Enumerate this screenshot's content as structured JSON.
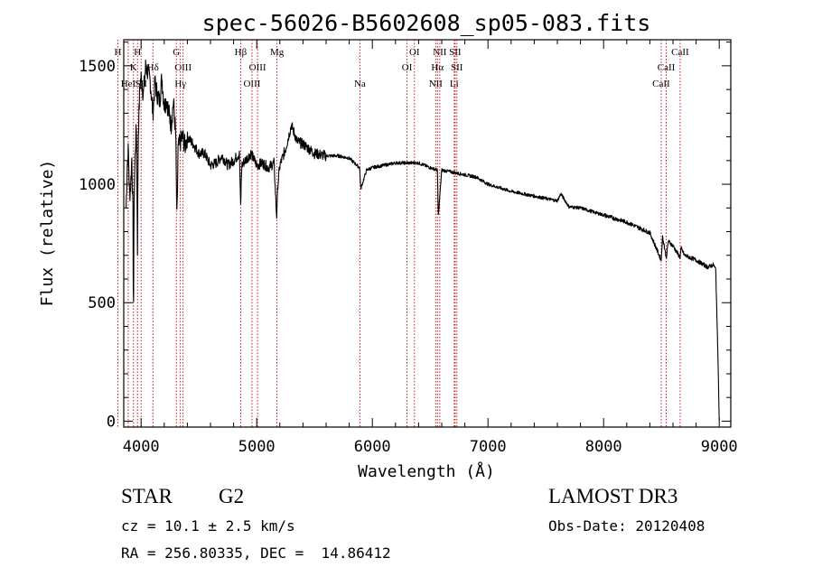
{
  "chart_data": {
    "type": "line",
    "title": "spec-56026-B5602608_sp05-083.fits",
    "xlabel": "Wavelength (Å)",
    "ylabel": "Flux (relative)",
    "xlim": [
      3850,
      9100
    ],
    "ylim": [
      -25,
      1610
    ],
    "xticks": [
      4000,
      5000,
      6000,
      7000,
      8000,
      9000
    ],
    "yticks": [
      0,
      500,
      1000,
      1500
    ],
    "xtick_labels": [
      "4000",
      "5000",
      "6000",
      "7000",
      "8000",
      "9000"
    ],
    "ytick_labels": [
      "0",
      "500",
      "1000",
      "1500"
    ],
    "series": [
      {
        "name": "flux",
        "x": [
          3870,
          3880,
          3890,
          3900,
          3910,
          3920,
          3930,
          3934,
          3940,
          3950,
          3960,
          3969,
          3975,
          3990,
          4000,
          4020,
          4040,
          4060,
          4080,
          4102,
          4120,
          4140,
          4160,
          4180,
          4200,
          4220,
          4240,
          4260,
          4280,
          4300,
          4310,
          4320,
          4340,
          4360,
          4380,
          4400,
          4450,
          4500,
          4550,
          4600,
          4650,
          4700,
          4750,
          4800,
          4850,
          4861,
          4870,
          4900,
          4950,
          5000,
          5050,
          5100,
          5150,
          5172,
          5183,
          5200,
          5250,
          5300,
          5350,
          5400,
          5450,
          5500,
          5600,
          5700,
          5800,
          5890,
          5900,
          5950,
          6000,
          6100,
          6200,
          6300,
          6400,
          6500,
          6563,
          6570,
          6600,
          6700,
          6800,
          6900,
          7000,
          7200,
          7400,
          7600,
          7630,
          7700,
          7800,
          8000,
          8200,
          8400,
          8498,
          8510,
          8542,
          8560,
          8600,
          8662,
          8670,
          8700,
          8800,
          8900,
          8950,
          8970,
          8990,
          9000
        ],
        "values": [
          900,
          1080,
          1150,
          950,
          1000,
          1120,
          860,
          420,
          950,
          1150,
          1250,
          720,
          1200,
          1420,
          1450,
          1380,
          1500,
          1470,
          1430,
          1300,
          1430,
          1380,
          1350,
          1450,
          1330,
          1360,
          1300,
          1250,
          1350,
          1200,
          830,
          1150,
          1180,
          1200,
          1160,
          1200,
          1170,
          1130,
          1130,
          1080,
          1090,
          1120,
          1080,
          1100,
          1130,
          900,
          1080,
          1100,
          1130,
          1080,
          1090,
          1070,
          1090,
          860,
          1000,
          1080,
          1150,
          1250,
          1180,
          1170,
          1150,
          1130,
          1120,
          1120,
          1110,
          1070,
          980,
          1060,
          1070,
          1080,
          1090,
          1090,
          1090,
          1070,
          1060,
          860,
          1060,
          1050,
          1040,
          1030,
          1000,
          970,
          950,
          930,
          960,
          905,
          900,
          870,
          840,
          795,
          680,
          780,
          690,
          760,
          740,
          690,
          730,
          700,
          680,
          650,
          660,
          640,
          250,
          0
        ]
      }
    ],
    "lines": [
      {
        "wave": 3799,
        "label": "H",
        "tier": 0
      },
      {
        "wave": 3934,
        "label": "K",
        "tier": 1
      },
      {
        "wave": 3889,
        "label": "HeI",
        "tier": 2
      },
      {
        "wave": 3969,
        "label": "H",
        "tier": 0
      },
      {
        "wave": 4102,
        "label": "Hδ",
        "tier": 1
      },
      {
        "wave": 4000,
        "label": "SII",
        "tier": 2
      },
      {
        "wave": 4305,
        "label": "G",
        "tier": 0
      },
      {
        "wave": 4363,
        "label": "OIII",
        "tier": 1
      },
      {
        "wave": 4340,
        "label": "Hγ",
        "tier": 2
      },
      {
        "wave": 4861,
        "label": "Hβ",
        "tier": 0
      },
      {
        "wave": 5007,
        "label": "OIII",
        "tier": 1
      },
      {
        "wave": 4959,
        "label": "OIII",
        "tier": 2
      },
      {
        "wave": 5175,
        "label": "Mg",
        "tier": 0
      },
      {
        "wave": 5892,
        "label": "Na",
        "tier": 2
      },
      {
        "wave": 6364,
        "label": "OI",
        "tier": 0
      },
      {
        "wave": 6300,
        "label": "OI",
        "tier": 1
      },
      {
        "wave": 6583,
        "label": "NII",
        "tier": 0
      },
      {
        "wave": 6563,
        "label": "Hα",
        "tier": 1
      },
      {
        "wave": 6548,
        "label": "NII",
        "tier": 2
      },
      {
        "wave": 6716,
        "label": "SII",
        "tier": 0
      },
      {
        "wave": 6731,
        "label": "SII",
        "tier": 1
      },
      {
        "wave": 6708,
        "label": "Li",
        "tier": 2
      },
      {
        "wave": 8662,
        "label": "CaII",
        "tier": 0
      },
      {
        "wave": 8542,
        "label": "CaII",
        "tier": 1
      },
      {
        "wave": 8498,
        "label": "CaII",
        "tier": 2
      }
    ],
    "line_color": "#000000",
    "marker_color": "#cc0000"
  },
  "info": {
    "object_class": "STAR",
    "subclass": "G2",
    "survey": "LAMOST DR3",
    "redshift_text": "cz = 10.1 ± 2.5 km/s",
    "obs_date_text": "Obs-Date: 20120408",
    "coords_text": "RA = 256.80335, DEC =  14.86412"
  }
}
